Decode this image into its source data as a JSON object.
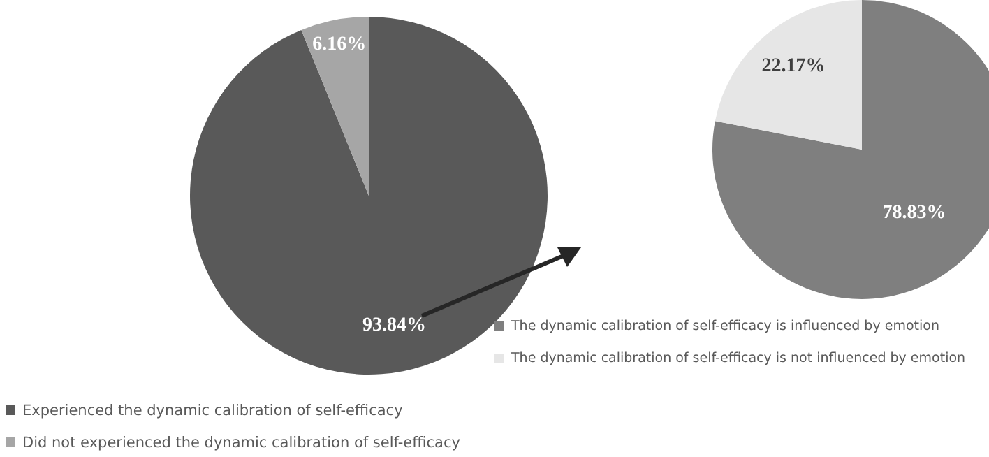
{
  "chart_data": [
    {
      "type": "pie",
      "categories": [
        "Experienced the dynamic calibration of self-efficacy",
        "Did not experienced the dynamic calibration of self-efficacy"
      ],
      "values": [
        93.84,
        6.16
      ],
      "colors": [
        "#595959",
        "#a6a6a6"
      ],
      "value_labels": [
        "93.84%",
        "6.16%"
      ],
      "legend": "bottom left"
    },
    {
      "type": "pie",
      "categories": [
        "The dynamic calibration of self-efficacy is influenced by emotion",
        "The dynamic calibration of self-efficacy is not influenced by emotion"
      ],
      "values": [
        78.83,
        22.17
      ],
      "colors": [
        "#7f7f7f",
        "#e6e6e6"
      ],
      "value_labels": [
        "78.83%",
        "22.17%"
      ],
      "legend": "bottom"
    }
  ]
}
